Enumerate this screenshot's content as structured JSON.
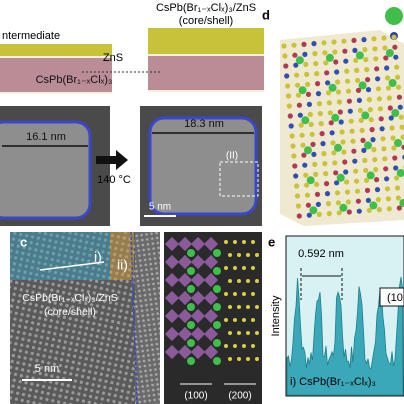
{
  "panel_a": {
    "left_label": "ntermediate",
    "shell_label": "ZnS",
    "core_label": "CsPb(Br₁₋ₓClₓ)₃",
    "product_label": "CsPb(Br₁₋ₓClₓ)₃/ZnS",
    "product_sublabel": "(core/shell)"
  },
  "panel_b": {
    "size_before": "16.1 nm",
    "size_after": "18.3 nm",
    "condition": "140 °C",
    "region": "(II)",
    "scale_bar": "5 nm"
  },
  "panel_c": {
    "letter": "c",
    "region_1": "i)",
    "region_2": "ii)",
    "label": "CsPb(Br₁₋ₓClₓ)₃/ZnS",
    "sublabel": "(core/shell)",
    "scale_bar": "5 nm",
    "direction_1": "(100)",
    "direction_2": "(200)"
  },
  "panel_d": {
    "letter": "d"
  },
  "panel_e": {
    "letter": "e",
    "spacing": "0.592 nm",
    "y_axis_label": "Intensity",
    "plane": "(10",
    "sample": "i) CsPb(Br₁₋ₓClₓ)₃"
  }
}
